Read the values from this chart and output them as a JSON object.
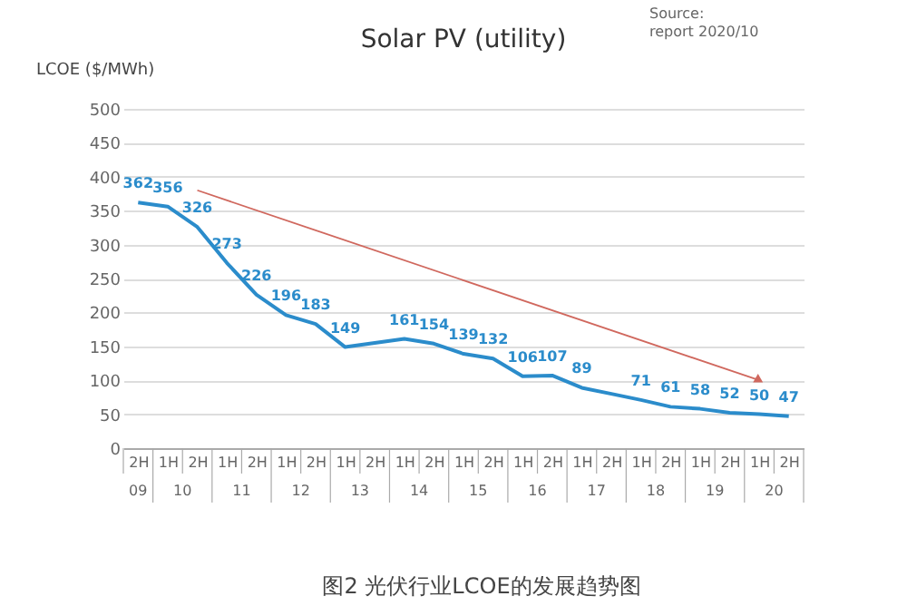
{
  "chart_data": {
    "type": "line",
    "title": "Solar PV (utility)",
    "ylabel": "LCOE ($/MWh)",
    "categories": [
      "2H",
      "1H",
      "2H",
      "1H",
      "2H",
      "1H",
      "2H",
      "1H",
      "2H",
      "1H",
      "2H",
      "1H",
      "2H",
      "1H",
      "2H",
      "1H",
      "2H",
      "1H",
      "2H",
      "1H",
      "2H",
      "1H",
      "2H"
    ],
    "series": [
      {
        "color": "#2b8ccb",
        "values": [
          362,
          356,
          326,
          273,
          226,
          196,
          183,
          149,
          155,
          161,
          154,
          139,
          132,
          106,
          107,
          89,
          80,
          71,
          61,
          58,
          52,
          50,
          47
        ],
        "value_labels": [
          "362",
          "356",
          "326",
          "273",
          "226",
          "196",
          "183",
          "149",
          null,
          "161",
          "154",
          "139",
          "132",
          "106",
          "107",
          "89",
          null,
          "71",
          "61",
          "58",
          "52",
          "50",
          "47"
        ]
      },
      {
        "type": "line",
        "color": "#d0685e",
        "values": [
          null,
          null,
          380,
          null,
          null,
          null,
          null,
          null,
          null,
          null,
          null,
          null,
          null,
          null,
          null,
          null,
          null,
          null,
          null,
          null,
          null,
          100,
          null
        ]
      }
    ],
    "ylim": [
      0,
      500
    ],
    "yticks": [
      0,
      50,
      100,
      150,
      200,
      250,
      300,
      350,
      400,
      450,
      500
    ],
    "grid": "y",
    "annotations": [
      "09",
      "10",
      "11",
      "12",
      "13",
      "14",
      "15",
      "16",
      "17",
      "18",
      "19",
      "20",
      "Source:",
      "report 2020/10",
      "图2 光伏行业LCOE的发展趋势图"
    ]
  }
}
